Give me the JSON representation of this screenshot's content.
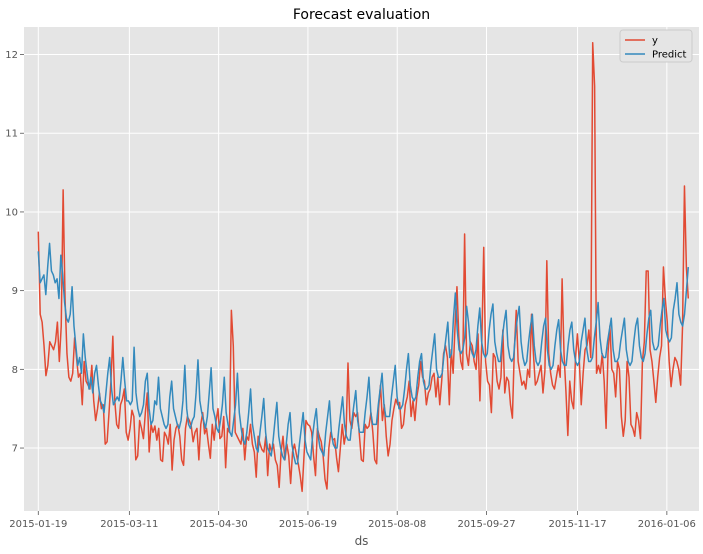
{
  "chart_data": {
    "type": "line",
    "title": "Forecast evaluation",
    "xlabel": "ds",
    "ylabel": "",
    "date_start": "2015-01-19",
    "date_end": "2016-01-18",
    "x_ticks": [
      "2015-01-19",
      "2015-03-11",
      "2015-04-30",
      "2015-06-19",
      "2015-08-08",
      "2015-09-27",
      "2015-11-17",
      "2016-01-06"
    ],
    "y_ticks": [
      7,
      8,
      9,
      10,
      11,
      12
    ],
    "xlim_days": [
      -8,
      370
    ],
    "ylim": [
      6.2,
      12.35
    ],
    "grid": true,
    "legend_position": "top-right",
    "colors": {
      "background": "#e5e5e5",
      "grid": "#ffffff",
      "y": "#e24a33",
      "predict": "#348abd"
    },
    "series": [
      {
        "name": "y",
        "key": "y",
        "values": [
          9.75,
          8.7,
          8.6,
          8.3,
          7.92,
          8.05,
          8.35,
          8.3,
          8.25,
          8.35,
          8.6,
          8.1,
          8.55,
          10.28,
          8.9,
          8.2,
          7.9,
          7.85,
          7.95,
          8.4,
          8.15,
          7.9,
          7.95,
          7.55,
          8.1,
          7.85,
          7.8,
          7.75,
          8.05,
          7.6,
          7.35,
          7.5,
          7.7,
          7.5,
          7.55,
          7.05,
          7.08,
          7.45,
          7.85,
          8.42,
          7.6,
          7.3,
          7.25,
          7.55,
          7.62,
          7.75,
          7.2,
          7.1,
          7.25,
          7.48,
          7.4,
          6.85,
          6.9,
          7.35,
          7.25,
          7.12,
          7.45,
          7.7,
          6.95,
          7.3,
          7.2,
          7.28,
          7.1,
          7.25,
          6.85,
          6.83,
          7.2,
          7.15,
          7.05,
          7.3,
          6.72,
          7.1,
          7.25,
          7.3,
          7.15,
          6.85,
          6.78,
          7.25,
          7.4,
          7.35,
          7.28,
          7.08,
          7.2,
          7.25,
          6.85,
          7.3,
          7.45,
          7.18,
          7.25,
          7.05,
          6.87,
          7.3,
          7.1,
          7.35,
          7.5,
          7.12,
          7.15,
          7.4,
          6.75,
          7.25,
          7.2,
          8.75,
          8.3,
          7.2,
          7.15,
          7.1,
          7.05,
          7.25,
          6.85,
          7.15,
          7.1,
          7.3,
          7.05,
          6.95,
          6.63,
          7.15,
          7.05,
          6.98,
          6.95,
          7.15,
          6.65,
          7.05,
          6.95,
          7.05,
          6.85,
          6.78,
          6.5,
          6.95,
          7.15,
          6.85,
          7.05,
          6.9,
          6.55,
          6.95,
          7.05,
          6.92,
          6.8,
          6.65,
          6.45,
          6.9,
          7.35,
          7.3,
          7.28,
          7.2,
          6.9,
          6.65,
          7.25,
          7.15,
          7.08,
          6.9,
          6.6,
          6.48,
          7.0,
          7.2,
          7.1,
          7.12,
          6.88,
          6.7,
          7.0,
          7.3,
          7.05,
          7.2,
          8.08,
          7.35,
          7.25,
          7.45,
          7.4,
          7.45,
          7.15,
          6.85,
          6.83,
          7.3,
          7.25,
          7.28,
          7.45,
          7.2,
          6.85,
          6.8,
          7.5,
          7.8,
          7.35,
          7.55,
          7.15,
          6.9,
          7.05,
          7.35,
          7.5,
          7.62,
          7.55,
          7.58,
          7.25,
          7.3,
          7.55,
          7.65,
          7.85,
          7.4,
          7.6,
          7.35,
          7.65,
          7.8,
          8.1,
          7.9,
          7.85,
          7.55,
          7.7,
          7.75,
          7.9,
          7.95,
          7.65,
          7.9,
          7.55,
          7.85,
          8.2,
          8.3,
          8.15,
          7.55,
          8.25,
          7.95,
          8.55,
          9.05,
          8.4,
          8.1,
          8.0,
          9.72,
          8.2,
          8.05,
          8.35,
          8.3,
          8.1,
          8.0,
          8.45,
          7.6,
          8.35,
          9.55,
          8.1,
          7.85,
          7.8,
          7.45,
          8.2,
          8.15,
          7.85,
          7.75,
          7.9,
          8.5,
          7.7,
          7.9,
          7.85,
          7.55,
          7.38,
          8.25,
          8.75,
          8.1,
          7.95,
          7.8,
          7.85,
          7.75,
          8.0,
          7.9,
          8.7,
          8.2,
          7.8,
          7.85,
          7.95,
          8.05,
          7.7,
          7.98,
          9.38,
          8.2,
          7.95,
          7.8,
          7.75,
          7.9,
          8.05,
          7.9,
          9.15,
          8.2,
          7.72,
          7.16,
          7.85,
          7.6,
          7.5,
          8.15,
          8.45,
          8.1,
          7.55,
          7.95,
          8.25,
          8.3,
          8.5,
          8.15,
          12.15,
          11.6,
          7.95,
          8.05,
          7.95,
          8.2,
          7.85,
          7.25,
          8.2,
          8.55,
          8.0,
          7.95,
          7.65,
          8.1,
          8.0,
          7.4,
          7.15,
          7.35,
          8.1,
          7.9,
          7.3,
          7.25,
          7.15,
          7.45,
          7.35,
          7.12,
          8.1,
          8.35,
          9.25,
          9.25,
          8.25,
          8.1,
          7.85,
          7.58,
          7.9,
          8.15,
          8.3,
          9.3,
          8.9,
          8.6,
          8.1,
          7.78,
          8.0,
          8.15,
          8.1,
          8.0,
          7.8,
          8.55,
          10.33,
          9.3,
          8.9
        ]
      },
      {
        "name": "Predict",
        "key": "predict",
        "values": [
          9.5,
          9.1,
          9.15,
          9.2,
          8.95,
          9.3,
          9.6,
          9.25,
          9.2,
          9.1,
          9.15,
          8.9,
          9.45,
          9.2,
          8.85,
          8.65,
          8.6,
          8.7,
          9.05,
          8.55,
          8.3,
          8.05,
          8.15,
          7.95,
          8.45,
          8.15,
          7.95,
          7.75,
          7.9,
          7.7,
          7.95,
          8.05,
          7.8,
          7.6,
          7.55,
          7.45,
          7.7,
          7.95,
          8.15,
          7.75,
          7.55,
          7.6,
          7.65,
          7.6,
          7.85,
          8.15,
          7.85,
          7.6,
          7.6,
          7.55,
          7.6,
          8.28,
          7.7,
          7.5,
          7.4,
          7.45,
          7.55,
          7.85,
          7.95,
          7.5,
          7.3,
          7.35,
          7.6,
          7.55,
          7.9,
          7.5,
          7.4,
          7.3,
          7.25,
          7.3,
          7.65,
          7.85,
          7.5,
          7.4,
          7.3,
          7.25,
          7.35,
          7.6,
          8.05,
          7.5,
          7.3,
          7.25,
          7.35,
          7.4,
          7.7,
          8.12,
          7.6,
          7.45,
          7.35,
          7.25,
          7.4,
          7.7,
          8.02,
          7.5,
          7.4,
          7.25,
          7.2,
          7.35,
          7.55,
          7.9,
          7.45,
          7.3,
          7.2,
          7.15,
          7.35,
          7.55,
          7.95,
          7.45,
          7.25,
          7.1,
          7.05,
          7.2,
          7.45,
          7.75,
          7.3,
          7.15,
          7.0,
          6.95,
          7.2,
          7.4,
          7.63,
          7.2,
          7.0,
          6.95,
          6.9,
          7.1,
          7.35,
          7.58,
          7.15,
          7.0,
          6.9,
          6.85,
          7.05,
          7.3,
          7.45,
          7.05,
          6.9,
          6.8,
          6.8,
          7.05,
          7.25,
          7.45,
          7.1,
          6.95,
          6.9,
          6.85,
          7.15,
          7.35,
          7.5,
          7.15,
          7.0,
          6.95,
          6.9,
          7.2,
          7.4,
          7.6,
          7.2,
          7.05,
          7.0,
          7.0,
          7.25,
          7.45,
          7.65,
          7.3,
          7.15,
          7.1,
          7.1,
          7.35,
          7.55,
          7.73,
          7.35,
          7.2,
          7.2,
          7.2,
          7.45,
          7.65,
          7.9,
          7.45,
          7.3,
          7.3,
          7.3,
          7.55,
          7.75,
          7.95,
          7.55,
          7.4,
          7.4,
          7.4,
          7.65,
          7.85,
          8.05,
          7.65,
          7.5,
          7.5,
          7.55,
          7.75,
          8.0,
          8.2,
          7.8,
          7.65,
          7.6,
          7.65,
          7.9,
          8.1,
          8.2,
          7.85,
          7.75,
          7.75,
          7.8,
          8.05,
          8.25,
          8.45,
          8.0,
          7.9,
          7.9,
          7.95,
          8.2,
          8.4,
          8.6,
          8.15,
          8.2,
          8.65,
          8.97,
          8.5,
          8.25,
          8.2,
          8.25,
          8.4,
          8.8,
          8.6,
          8.3,
          8.2,
          8.15,
          8.25,
          8.55,
          8.78,
          8.35,
          8.2,
          8.15,
          8.2,
          8.5,
          8.7,
          8.83,
          8.35,
          8.2,
          8.1,
          8.1,
          8.4,
          8.6,
          8.75,
          8.3,
          8.15,
          8.1,
          8.15,
          8.45,
          8.65,
          8.8,
          8.35,
          8.15,
          8.05,
          8.1,
          8.35,
          8.55,
          8.7,
          8.3,
          8.1,
          8.05,
          8.1,
          8.35,
          8.55,
          8.65,
          8.25,
          8.05,
          8.0,
          8.05,
          8.3,
          8.5,
          8.63,
          8.25,
          8.1,
          8.05,
          8.05,
          8.3,
          8.5,
          8.6,
          8.25,
          8.1,
          8.05,
          8.1,
          8.35,
          8.5,
          8.65,
          8.25,
          8.1,
          8.1,
          8.15,
          8.4,
          8.6,
          8.85,
          8.4,
          8.2,
          8.15,
          8.15,
          8.35,
          8.5,
          8.65,
          8.25,
          8.1,
          8.1,
          8.15,
          8.35,
          8.5,
          8.65,
          8.25,
          8.1,
          8.05,
          8.1,
          8.35,
          8.55,
          8.65,
          8.3,
          8.15,
          8.1,
          8.2,
          8.45,
          8.65,
          8.75,
          8.35,
          8.25,
          8.25,
          8.3,
          8.55,
          8.75,
          8.9,
          8.5,
          8.4,
          8.35,
          8.4,
          8.75,
          8.9,
          9.1,
          8.7,
          8.6,
          8.55,
          8.7,
          9.0,
          9.3
        ]
      }
    ]
  }
}
